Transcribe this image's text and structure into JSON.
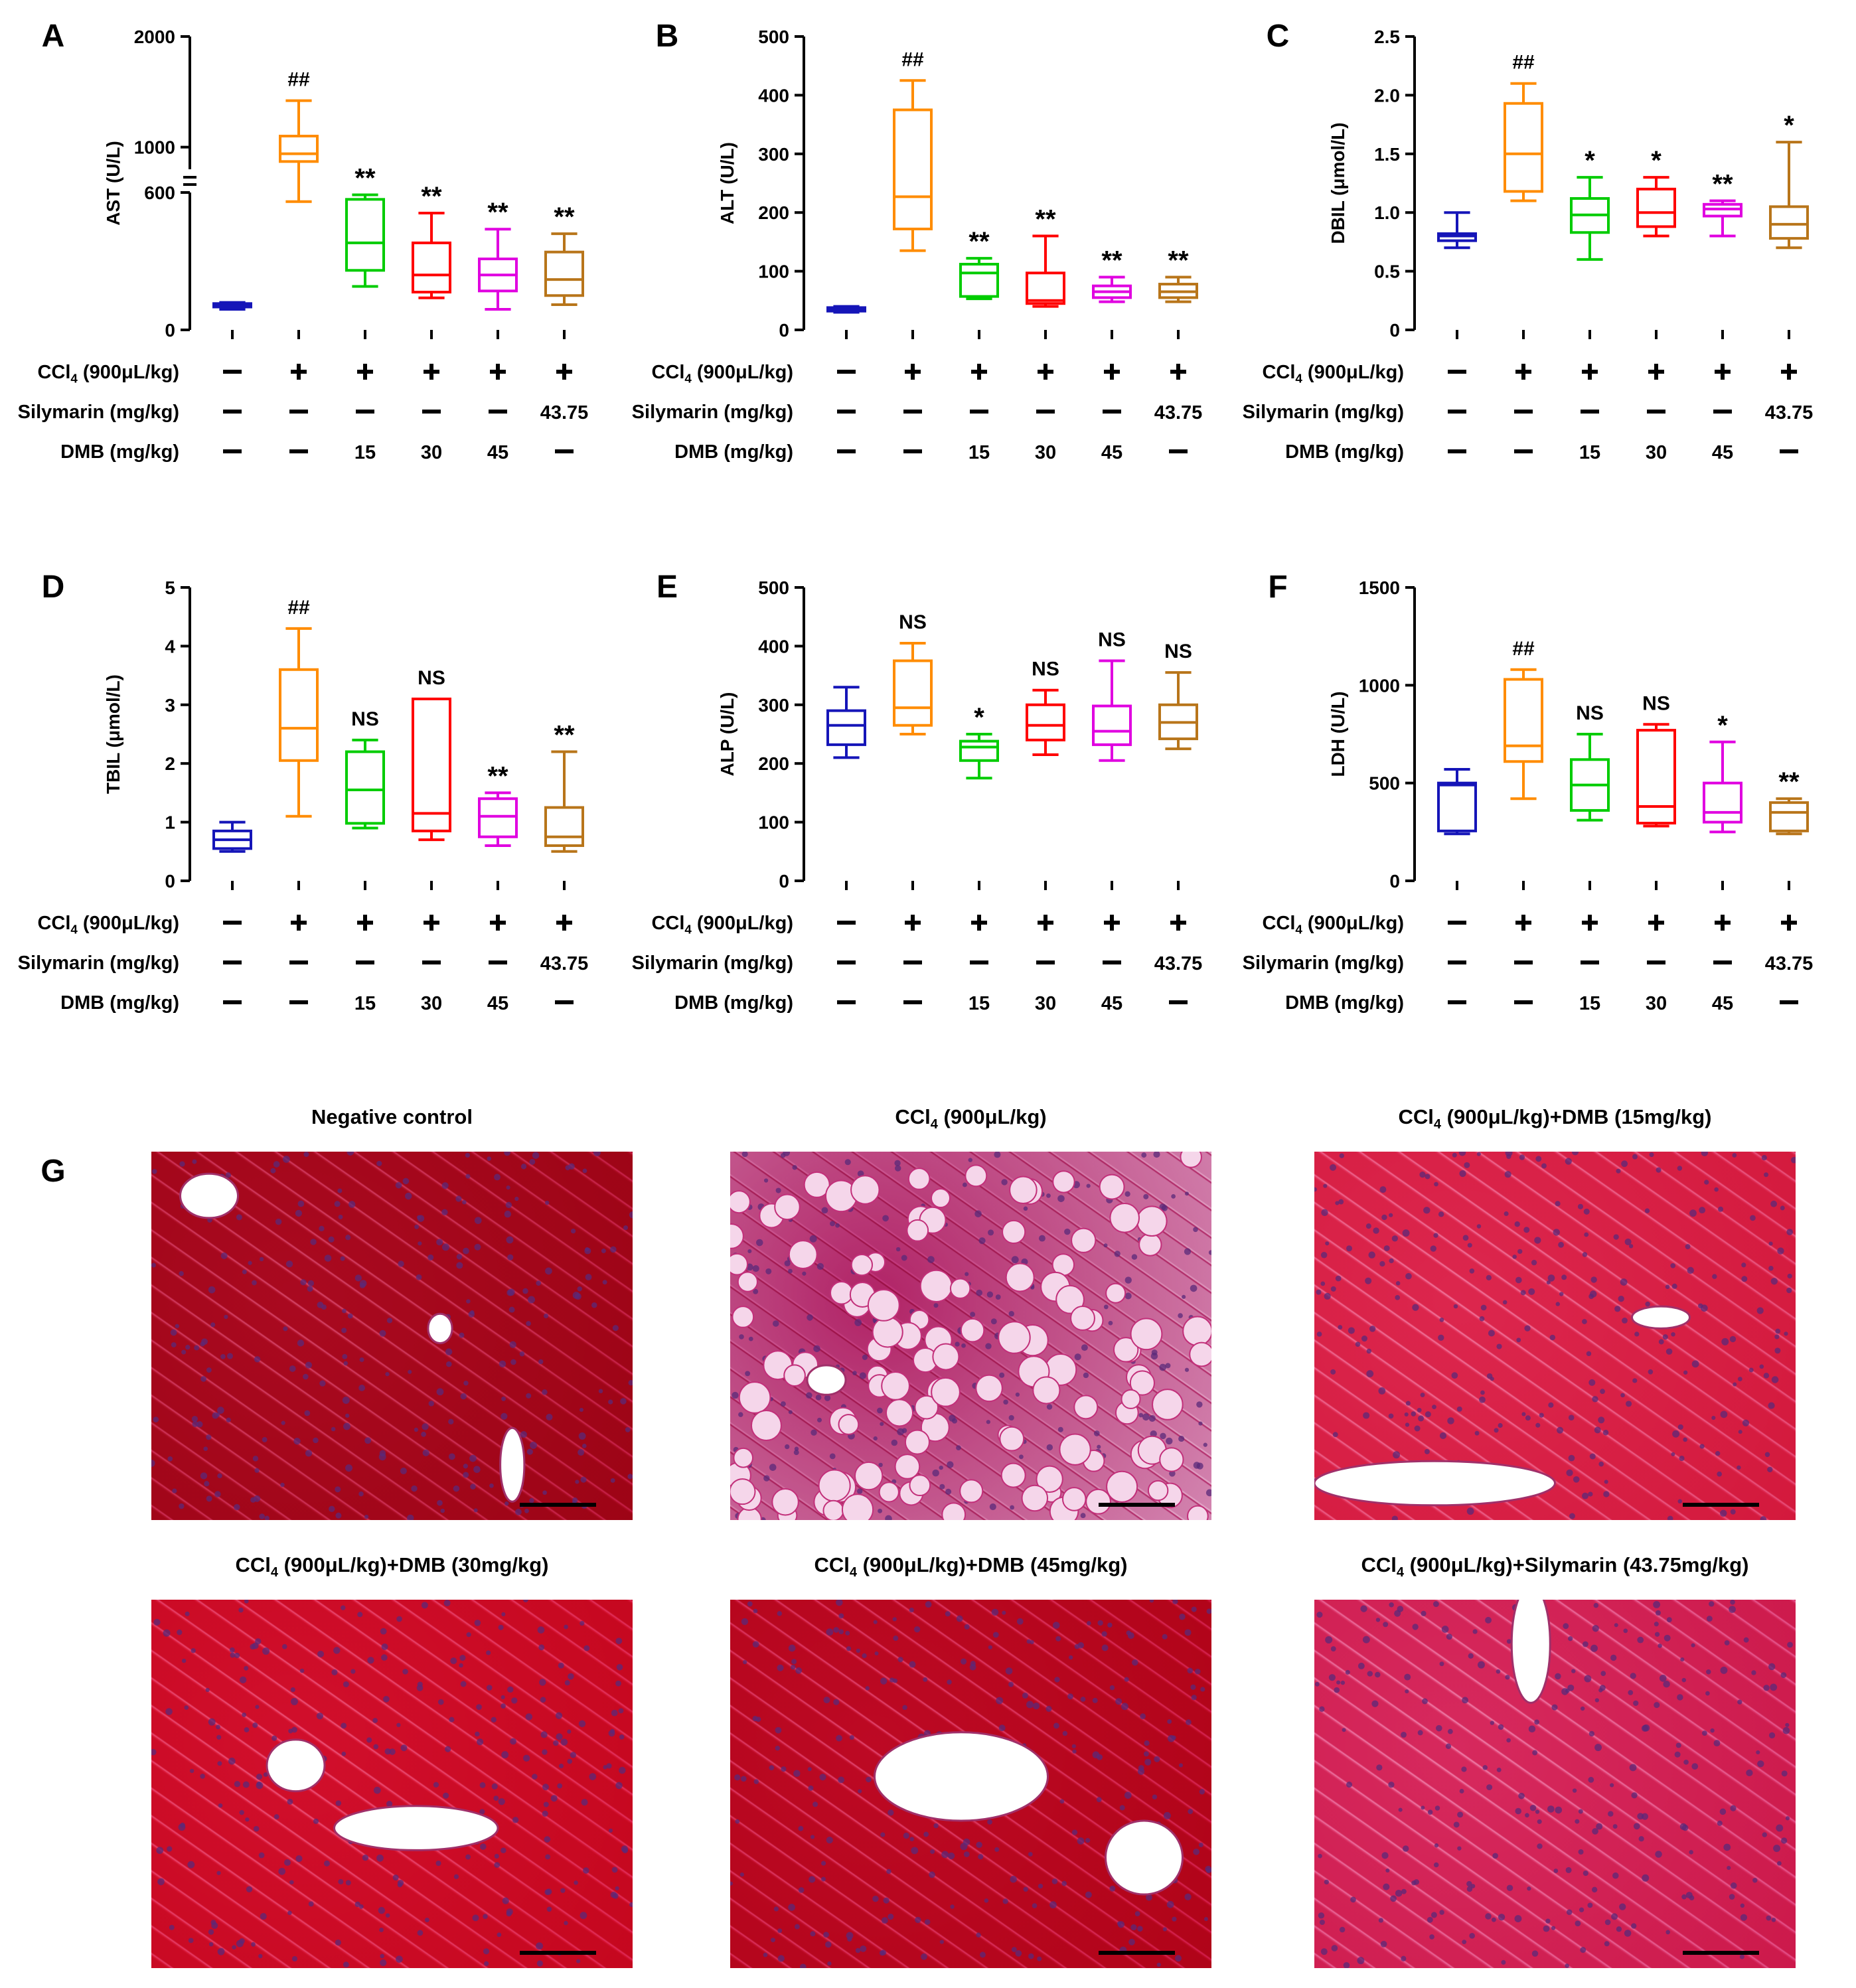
{
  "chart_data": [
    {
      "type": "box",
      "panel": "A",
      "ylabel": "AST (U/L)",
      "axis_break": true,
      "yticks_lower": [
        0,
        600
      ],
      "yticks_upper": [
        1000,
        2000
      ],
      "lower_range": [
        0,
        600
      ],
      "upper_range": [
        800,
        2000
      ],
      "annotations": [
        "",
        "##",
        "**",
        "**",
        "**",
        "**"
      ],
      "boxes": [
        {
          "min": 90,
          "q1": 100,
          "median": 105,
          "q3": 115,
          "max": 120
        },
        {
          "min": 560,
          "q1": 870,
          "median": 940,
          "q3": 1100,
          "max": 1420
        },
        {
          "min": 190,
          "q1": 260,
          "median": 380,
          "q3": 570,
          "max": 590
        },
        {
          "min": 140,
          "q1": 165,
          "median": 240,
          "q3": 380,
          "max": 510
        },
        {
          "min": 90,
          "q1": 170,
          "median": 240,
          "q3": 310,
          "max": 440
        },
        {
          "min": 110,
          "q1": 150,
          "median": 220,
          "q3": 340,
          "max": 420
        }
      ]
    },
    {
      "type": "box",
      "panel": "B",
      "ylabel": "ALT (U/L)",
      "ylim": [
        0,
        500
      ],
      "yticks": [
        0,
        100,
        200,
        300,
        400,
        500
      ],
      "annotations": [
        "",
        "##",
        "**",
        "**",
        "**",
        "**"
      ],
      "boxes": [
        {
          "min": 30,
          "q1": 32,
          "median": 35,
          "q3": 38,
          "max": 40
        },
        {
          "min": 135,
          "q1": 172,
          "median": 227,
          "q3": 375,
          "max": 425
        },
        {
          "min": 53,
          "q1": 57,
          "median": 97,
          "q3": 112,
          "max": 122
        },
        {
          "min": 40,
          "q1": 45,
          "median": 50,
          "q3": 97,
          "max": 160
        },
        {
          "min": 48,
          "q1": 55,
          "median": 65,
          "q3": 75,
          "max": 90
        },
        {
          "min": 48,
          "q1": 55,
          "median": 65,
          "q3": 78,
          "max": 90
        }
      ]
    },
    {
      "type": "box",
      "panel": "C",
      "ylabel": "DBIL (μmol/L)",
      "ylim": [
        0,
        2.5
      ],
      "yticks": [
        "0",
        "0.5",
        "1.0",
        "1.5",
        "2.0",
        "2.5"
      ],
      "annotations": [
        "",
        "##",
        "*",
        "*",
        "**",
        "*"
      ],
      "boxes": [
        {
          "min": 0.7,
          "q1": 0.76,
          "median": 0.8,
          "q3": 0.82,
          "max": 1.0
        },
        {
          "min": 1.1,
          "q1": 1.18,
          "median": 1.5,
          "q3": 1.93,
          "max": 2.1
        },
        {
          "min": 0.6,
          "q1": 0.83,
          "median": 0.98,
          "q3": 1.12,
          "max": 1.3
        },
        {
          "min": 0.8,
          "q1": 0.88,
          "median": 1.0,
          "q3": 1.2,
          "max": 1.3
        },
        {
          "min": 0.8,
          "q1": 0.97,
          "median": 1.03,
          "q3": 1.07,
          "max": 1.1
        },
        {
          "min": 0.7,
          "q1": 0.78,
          "median": 0.9,
          "q3": 1.05,
          "max": 1.6
        }
      ]
    },
    {
      "type": "box",
      "panel": "D",
      "ylabel": "TBIL (μmol/L)",
      "ylim": [
        0,
        5
      ],
      "yticks": [
        "0",
        "1",
        "2",
        "3",
        "4",
        "5"
      ],
      "annotations": [
        "",
        "##",
        "NS",
        "NS",
        "**",
        "**"
      ],
      "boxes": [
        {
          "min": 0.5,
          "q1": 0.55,
          "median": 0.7,
          "q3": 0.85,
          "max": 1.0
        },
        {
          "min": 1.1,
          "q1": 2.05,
          "median": 2.6,
          "q3": 3.6,
          "max": 4.3
        },
        {
          "min": 0.9,
          "q1": 0.98,
          "median": 1.55,
          "q3": 2.2,
          "max": 2.4
        },
        {
          "min": 0.7,
          "q1": 0.85,
          "median": 1.15,
          "q3": 3.1,
          "max": 3.1
        },
        {
          "min": 0.6,
          "q1": 0.75,
          "median": 1.1,
          "q3": 1.4,
          "max": 1.5
        },
        {
          "min": 0.5,
          "q1": 0.6,
          "median": 0.75,
          "q3": 1.25,
          "max": 2.2
        }
      ]
    },
    {
      "type": "box",
      "panel": "E",
      "ylabel": "ALP (U/L)",
      "ylim": [
        0,
        500
      ],
      "yticks": [
        "0",
        "100",
        "200",
        "300",
        "400",
        "500"
      ],
      "annotations": [
        "",
        "NS",
        "*",
        "NS",
        "NS",
        "NS"
      ],
      "boxes": [
        {
          "min": 210,
          "q1": 232,
          "median": 265,
          "q3": 290,
          "max": 330
        },
        {
          "min": 250,
          "q1": 265,
          "median": 295,
          "q3": 375,
          "max": 405
        },
        {
          "min": 175,
          "q1": 205,
          "median": 228,
          "q3": 238,
          "max": 250
        },
        {
          "min": 215,
          "q1": 240,
          "median": 265,
          "q3": 300,
          "max": 325
        },
        {
          "min": 205,
          "q1": 232,
          "median": 255,
          "q3": 298,
          "max": 375
        },
        {
          "min": 225,
          "q1": 242,
          "median": 270,
          "q3": 300,
          "max": 355
        }
      ]
    },
    {
      "type": "box",
      "panel": "F",
      "ylabel": "LDH (U/L)",
      "ylim": [
        0,
        1500
      ],
      "yticks": [
        "0",
        "500",
        "1000",
        "1500"
      ],
      "annotations": [
        "",
        "##",
        "NS",
        "NS",
        "*",
        "**"
      ],
      "boxes": [
        {
          "min": 240,
          "q1": 255,
          "median": 490,
          "q3": 500,
          "max": 570
        },
        {
          "min": 420,
          "q1": 610,
          "median": 690,
          "q3": 1030,
          "max": 1080
        },
        {
          "min": 310,
          "q1": 360,
          "median": 490,
          "q3": 620,
          "max": 750
        },
        {
          "min": 280,
          "q1": 295,
          "median": 380,
          "q3": 770,
          "max": 800
        },
        {
          "min": 250,
          "q1": 300,
          "median": 350,
          "q3": 500,
          "max": 710
        },
        {
          "min": 240,
          "q1": 255,
          "median": 350,
          "q3": 400,
          "max": 420
        }
      ]
    }
  ],
  "group_colors": [
    "#1515b8",
    "#ff8c00",
    "#00cc00",
    "#ff0000",
    "#e000e0",
    "#b8751a"
  ],
  "treatment_table": {
    "rows": [
      {
        "label": "CCl4 (900μL/kg)",
        "values": [
          "—",
          "+",
          "+",
          "+",
          "+",
          "+"
        ]
      },
      {
        "label": "Silymarin (mg/kg)",
        "values": [
          "—",
          "—",
          "—",
          "—",
          "—",
          "43.75"
        ]
      },
      {
        "label": "DMB (mg/kg)",
        "values": [
          "—",
          "—",
          "15",
          "30",
          "45",
          "—"
        ]
      }
    ]
  },
  "histology": {
    "panel_label": "G",
    "titles": [
      "Negative control",
      "CCl4 (900μL/kg)",
      "CCl4 (900μL/kg)+DMB (15mg/kg)",
      "CCl4 (900μL/kg)+DMB (30mg/kg)",
      "CCl4 (900μL/kg)+DMB (45mg/kg)",
      "CCl4 (900μL/kg)+Silymarin (43.75mg/kg)"
    ]
  }
}
